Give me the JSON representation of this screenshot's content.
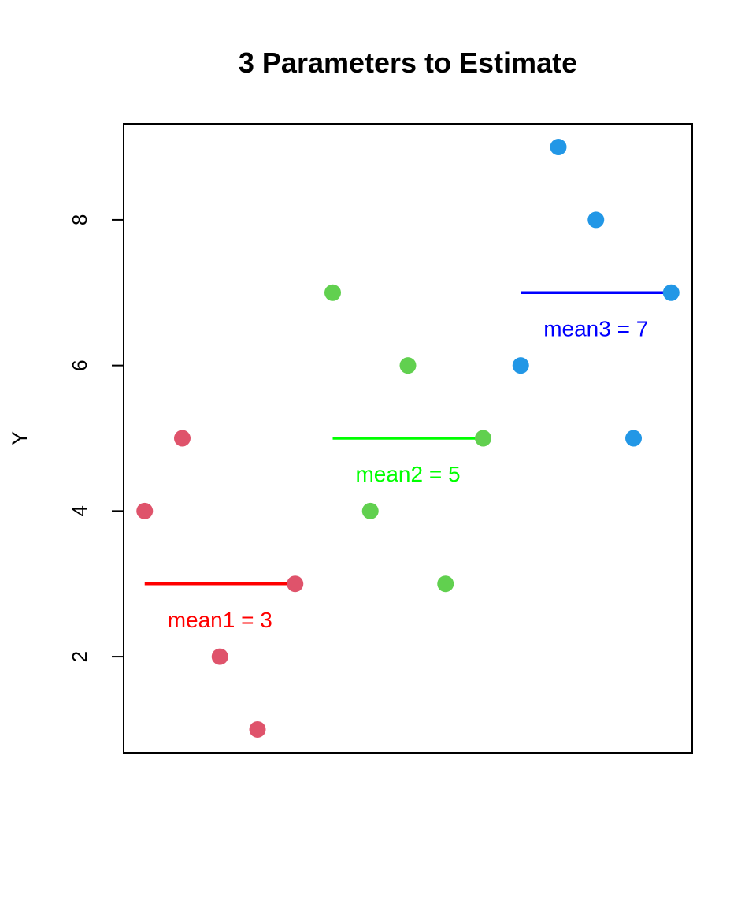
{
  "chart_data": {
    "type": "scatter",
    "title": "3 Parameters to Estimate",
    "y_label": "Y",
    "xlim": [
      0.44,
      15.56
    ],
    "ylim": [
      0.68,
      9.32
    ],
    "yticks": [
      2,
      4,
      6,
      8
    ],
    "series": [
      {
        "color": "#DF536B",
        "x": [
          1,
          2,
          3,
          4,
          5
        ],
        "values": [
          4,
          5,
          2,
          1,
          3
        ]
      },
      {
        "color": "#61D04F",
        "x": [
          6,
          7,
          8,
          9,
          10
        ],
        "values": [
          7,
          4,
          6,
          3,
          5
        ]
      },
      {
        "color": "#2297E6",
        "x": [
          11,
          12,
          13,
          14,
          15
        ],
        "values": [
          6,
          9,
          8,
          5,
          7
        ]
      }
    ],
    "means": [
      {
        "label": "mean1 = 3",
        "value": 3,
        "x": [
          1,
          5
        ],
        "color": "#FF0000"
      },
      {
        "label": "mean2 = 5",
        "value": 5,
        "x": [
          6,
          10
        ],
        "color": "#00FF00"
      },
      {
        "label": "mean3 = 7",
        "value": 7,
        "x": [
          11,
          15
        ],
        "color": "#0000FF"
      }
    ]
  }
}
